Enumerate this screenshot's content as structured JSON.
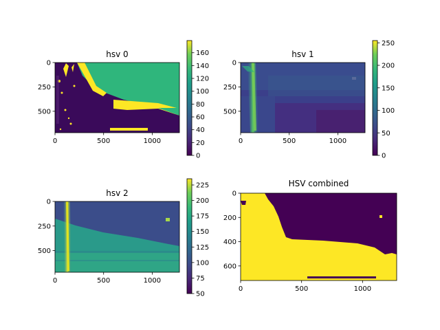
{
  "chart_data": [
    {
      "type": "heatmap",
      "title": "hsv 0",
      "xlim": [
        0,
        1280
      ],
      "ylim": [
        720,
        0
      ],
      "xticks": [
        0,
        500,
        1000
      ],
      "yticks": [
        0,
        250,
        500
      ],
      "colormap": "viridis",
      "colorbar": {
        "range": [
          0,
          179
        ],
        "ticks": [
          0,
          20,
          40,
          60,
          80,
          100,
          120,
          140,
          160
        ]
      },
      "grid": false
    },
    {
      "type": "heatmap",
      "title": "hsv 1",
      "xlim": [
        0,
        1280
      ],
      "ylim": [
        720,
        0
      ],
      "xticks": [
        0,
        500,
        1000
      ],
      "yticks": [
        0,
        250,
        500
      ],
      "colormap": "viridis",
      "colorbar": {
        "range": [
          0,
          255
        ],
        "ticks": [
          0,
          50,
          100,
          150,
          200,
          250
        ]
      },
      "grid": false
    },
    {
      "type": "heatmap",
      "title": "hsv 2",
      "xlim": [
        0,
        1280
      ],
      "ylim": [
        720,
        0
      ],
      "xticks": [
        0,
        500,
        1000
      ],
      "yticks": [
        0,
        250,
        500
      ],
      "colormap": "viridis",
      "colorbar": {
        "range": [
          50,
          235
        ],
        "ticks": [
          50,
          75,
          100,
          125,
          150,
          175,
          200,
          225
        ]
      },
      "grid": false
    },
    {
      "type": "heatmap",
      "title": "HSV combined",
      "xlim": [
        0,
        1280
      ],
      "ylim": [
        720,
        0
      ],
      "xticks": [
        0,
        500,
        1000
      ],
      "yticks": [
        0,
        200,
        400,
        600
      ],
      "colormap": "viridis",
      "colorbar": null,
      "grid": false
    }
  ]
}
